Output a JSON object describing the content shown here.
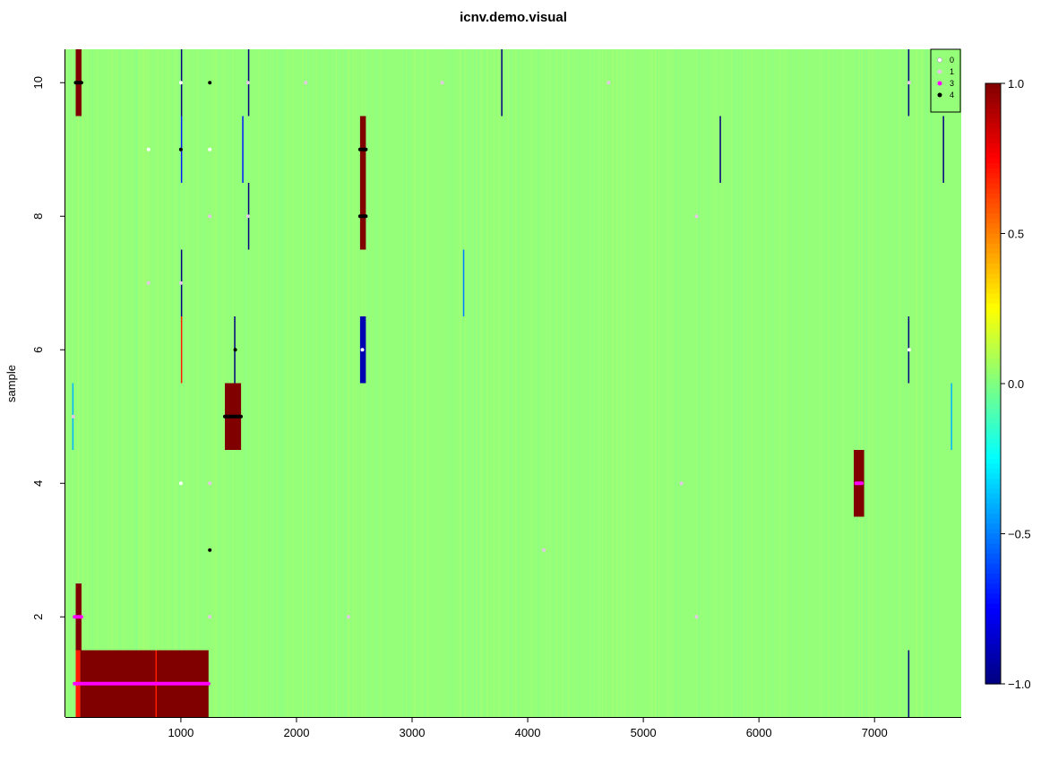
{
  "chart_data": {
    "type": "heatmap",
    "title": "icnv.demo.visual",
    "xlabel": "",
    "ylabel": "sample",
    "xlim": [
      1,
      7750
    ],
    "ylim": [
      0.5,
      10.5
    ],
    "x_ticks": [
      1000,
      2000,
      3000,
      4000,
      5000,
      6000,
      7000
    ],
    "y_ticks": [
      2,
      4,
      6,
      8,
      10
    ],
    "background_value": 0.0,
    "background_color": "#96FF7A",
    "color_scale": {
      "min": -1.0,
      "max": 1.0,
      "ticks": [
        -1.0,
        -0.5,
        0.0,
        0.5,
        1.0
      ],
      "tick_labels": [
        "−1.0",
        "−0.5",
        "0.0",
        "0.5",
        "1.0"
      ],
      "palette": "jet"
    },
    "segments": [
      {
        "sample": 10,
        "x_start": 90,
        "x_end": 140,
        "value": 1.0
      },
      {
        "sample": 10,
        "x_start": 1000,
        "x_end": 1012,
        "value": -1.0
      },
      {
        "sample": 10,
        "x_start": 1580,
        "x_end": 1592,
        "value": -1.0
      },
      {
        "sample": 10,
        "x_start": 3770,
        "x_end": 3782,
        "value": -1.0
      },
      {
        "sample": 10,
        "x_start": 7290,
        "x_end": 7302,
        "value": -1.0
      },
      {
        "sample": 9,
        "x_start": 1000,
        "x_end": 1010,
        "value": -0.7
      },
      {
        "sample": 9,
        "x_start": 1530,
        "x_end": 1540,
        "value": -0.7
      },
      {
        "sample": 9,
        "x_start": 2550,
        "x_end": 2600,
        "value": 1.0
      },
      {
        "sample": 9,
        "x_start": 5660,
        "x_end": 5672,
        "value": -1.0
      },
      {
        "sample": 9,
        "x_start": 7590,
        "x_end": 7602,
        "value": -1.0
      },
      {
        "sample": 8,
        "x_start": 1580,
        "x_end": 1592,
        "value": -1.0
      },
      {
        "sample": 8,
        "x_start": 2550,
        "x_end": 2600,
        "value": 1.0
      },
      {
        "sample": 7,
        "x_start": 1000,
        "x_end": 1012,
        "value": -1.0
      },
      {
        "sample": 7,
        "x_start": 3440,
        "x_end": 3452,
        "value": -0.5
      },
      {
        "sample": 6,
        "x_start": 1000,
        "x_end": 1010,
        "value": 0.7
      },
      {
        "sample": 6,
        "x_start": 1460,
        "x_end": 1472,
        "value": -1.0
      },
      {
        "sample": 6,
        "x_start": 2550,
        "x_end": 2600,
        "value": -0.9
      },
      {
        "sample": 6,
        "x_start": 7290,
        "x_end": 7302,
        "value": -1.0
      },
      {
        "sample": 5,
        "x_start": 60,
        "x_end": 70,
        "value": -0.4
      },
      {
        "sample": 5,
        "x_start": 1380,
        "x_end": 1520,
        "value": 1.0
      },
      {
        "sample": 5,
        "x_start": 7660,
        "x_end": 7672,
        "value": -0.4
      },
      {
        "sample": 4,
        "x_start": 6820,
        "x_end": 6910,
        "value": 1.0
      },
      {
        "sample": 2,
        "x_start": 90,
        "x_end": 140,
        "value": 1.0
      },
      {
        "sample": 1,
        "x_start": 90,
        "x_end": 130,
        "value": 0.7
      },
      {
        "sample": 1,
        "x_start": 130,
        "x_end": 1240,
        "value": 1.0
      },
      {
        "sample": 1,
        "x_start": 780,
        "x_end": 790,
        "value": 0.7
      },
      {
        "sample": 1,
        "x_start": 7290,
        "x_end": 7302,
        "value": -1.0
      }
    ],
    "legend": {
      "placement": "top-right",
      "entries": [
        {
          "label": "0",
          "color": "#FFFFFF"
        },
        {
          "label": "1",
          "color": "#E5C8E5"
        },
        {
          "label": "3",
          "color": "#FF00FF"
        },
        {
          "label": "4",
          "color": "#000000"
        }
      ]
    },
    "calls": [
      {
        "sample": 10,
        "x_start": 90,
        "x_end": 140,
        "cn": 4
      },
      {
        "sample": 10,
        "x_start": 1000,
        "x_end": 1000,
        "cn": 0
      },
      {
        "sample": 10,
        "x_start": 1250,
        "x_end": 1250,
        "cn": 4
      },
      {
        "sample": 10,
        "x_start": 1580,
        "x_end": 1580,
        "cn": 1
      },
      {
        "sample": 10,
        "x_start": 2080,
        "x_end": 2080,
        "cn": 1
      },
      {
        "sample": 10,
        "x_start": 3260,
        "x_end": 3260,
        "cn": 1
      },
      {
        "sample": 10,
        "x_start": 4700,
        "x_end": 4700,
        "cn": 1
      },
      {
        "sample": 10,
        "x_start": 7300,
        "x_end": 7300,
        "cn": 1
      },
      {
        "sample": 9,
        "x_start": 720,
        "x_end": 720,
        "cn": 0
      },
      {
        "sample": 9,
        "x_start": 1000,
        "x_end": 1000,
        "cn": 4
      },
      {
        "sample": 9,
        "x_start": 1250,
        "x_end": 1250,
        "cn": 0
      },
      {
        "sample": 9,
        "x_start": 2550,
        "x_end": 2600,
        "cn": 4
      },
      {
        "sample": 8,
        "x_start": 1250,
        "x_end": 1250,
        "cn": 1
      },
      {
        "sample": 8,
        "x_start": 1580,
        "x_end": 1580,
        "cn": 1
      },
      {
        "sample": 8,
        "x_start": 2550,
        "x_end": 2600,
        "cn": 4
      },
      {
        "sample": 8,
        "x_start": 5460,
        "x_end": 5460,
        "cn": 1
      },
      {
        "sample": 7,
        "x_start": 720,
        "x_end": 720,
        "cn": 1
      },
      {
        "sample": 7,
        "x_start": 1000,
        "x_end": 1000,
        "cn": 1
      },
      {
        "sample": 6,
        "x_start": 1470,
        "x_end": 1470,
        "cn": 4
      },
      {
        "sample": 6,
        "x_start": 2570,
        "x_end": 2570,
        "cn": 0
      },
      {
        "sample": 6,
        "x_start": 7300,
        "x_end": 7300,
        "cn": 0
      },
      {
        "sample": 5,
        "x_start": 70,
        "x_end": 70,
        "cn": 1
      },
      {
        "sample": 5,
        "x_start": 1380,
        "x_end": 1520,
        "cn": 4
      },
      {
        "sample": 4,
        "x_start": 1000,
        "x_end": 1000,
        "cn": 0
      },
      {
        "sample": 4,
        "x_start": 1250,
        "x_end": 1250,
        "cn": 1
      },
      {
        "sample": 4,
        "x_start": 5330,
        "x_end": 5330,
        "cn": 1
      },
      {
        "sample": 4,
        "x_start": 6840,
        "x_end": 6890,
        "cn": 3
      },
      {
        "sample": 3,
        "x_start": 1250,
        "x_end": 1250,
        "cn": 4
      },
      {
        "sample": 3,
        "x_start": 4140,
        "x_end": 4140,
        "cn": 1
      },
      {
        "sample": 2,
        "x_start": 80,
        "x_end": 140,
        "cn": 3
      },
      {
        "sample": 2,
        "x_start": 1250,
        "x_end": 1250,
        "cn": 1
      },
      {
        "sample": 2,
        "x_start": 2450,
        "x_end": 2450,
        "cn": 1
      },
      {
        "sample": 2,
        "x_start": 5460,
        "x_end": 5460,
        "cn": 1
      },
      {
        "sample": 1,
        "x_start": 80,
        "x_end": 1240,
        "cn": 3
      }
    ]
  }
}
